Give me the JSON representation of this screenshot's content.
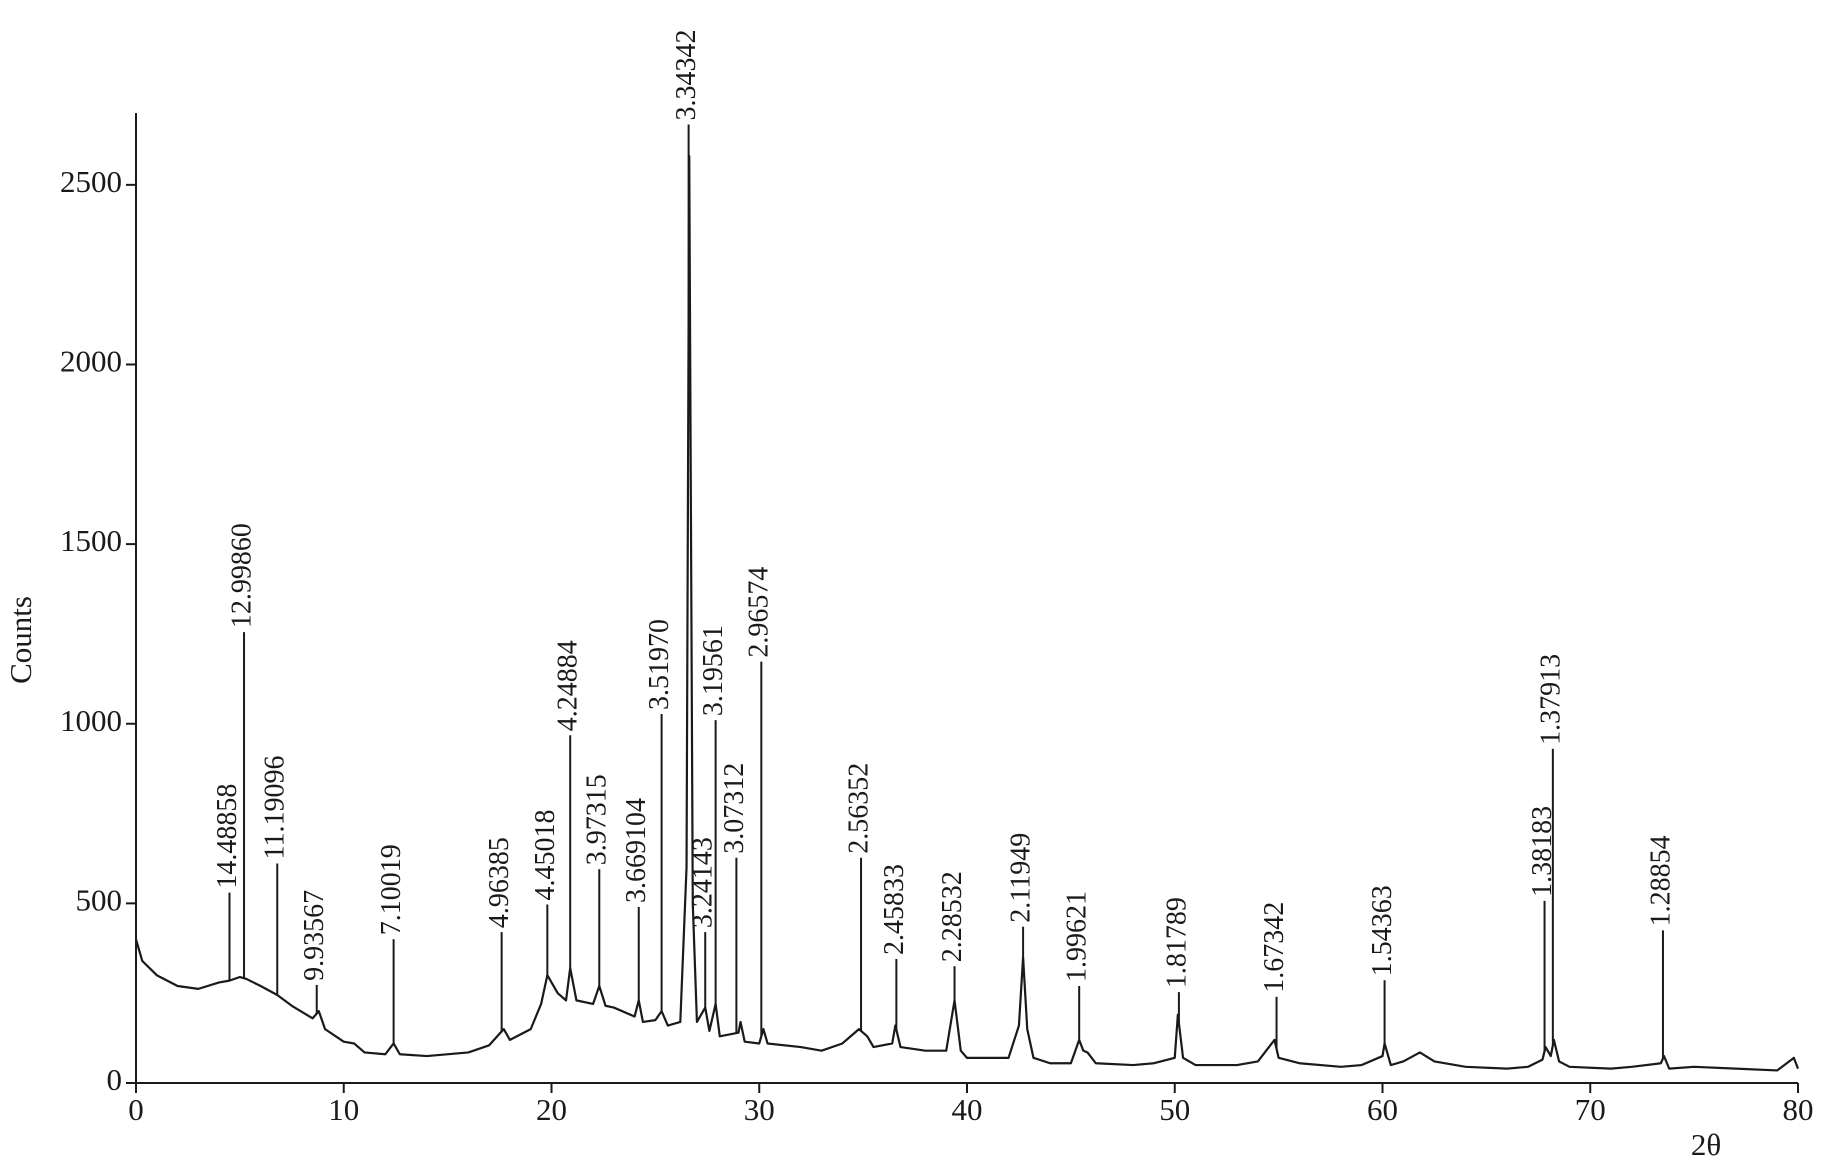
{
  "chart_data": {
    "type": "line",
    "xlabel": "2θ",
    "ylabel": "Counts",
    "color": "#1a1a1a",
    "xlim": [
      0,
      80
    ],
    "xticks": [
      0,
      10,
      20,
      30,
      40,
      50,
      60,
      70,
      80
    ],
    "ylim": [
      0,
      2700
    ],
    "yticks": [
      0,
      500,
      1000,
      1500,
      2000,
      2500
    ],
    "x": [
      0,
      0.3,
      1,
      2,
      3,
      4,
      4.5,
      5,
      5.3,
      6,
      6.8,
      7.5,
      8.5,
      8.8,
      9.1,
      10,
      10.5,
      11,
      12,
      12.4,
      12.7,
      14,
      16,
      17,
      17.7,
      18,
      19,
      19.5,
      19.8,
      20.3,
      20.7,
      20.9,
      21.2,
      22,
      22.3,
      22.6,
      23,
      24,
      24.2,
      24.4,
      25,
      25.3,
      25.6,
      26.2,
      26.5,
      26.63,
      26.8,
      27,
      27.4,
      27.6,
      27.9,
      28.1,
      29,
      29.1,
      29.3,
      30,
      30.2,
      30.4,
      32,
      33,
      34,
      34.8,
      35.2,
      35.5,
      36.4,
      36.55,
      36.8,
      38,
      39,
      39.4,
      39.7,
      40,
      41,
      42,
      42.5,
      42.7,
      42.9,
      43.2,
      44,
      45,
      45.4,
      45.6,
      45.8,
      46.2,
      48,
      49,
      50,
      50.15,
      50.4,
      51,
      53,
      54,
      54.8,
      55,
      56,
      58,
      59,
      60,
      60.1,
      60.4,
      61,
      61.8,
      62.5,
      64,
      66,
      67,
      67.7,
      67.85,
      68.1,
      68.25,
      68.5,
      69,
      71,
      72,
      73.4,
      73.55,
      73.8,
      75,
      77,
      79,
      79.8,
      80
    ],
    "values": [
      400,
      340,
      300,
      270,
      262,
      280,
      285,
      295,
      290,
      270,
      245,
      215,
      180,
      200,
      150,
      115,
      110,
      85,
      80,
      110,
      80,
      75,
      85,
      105,
      150,
      120,
      150,
      220,
      300,
      250,
      230,
      320,
      230,
      220,
      270,
      215,
      210,
      185,
      230,
      170,
      175,
      200,
      160,
      170,
      600,
      2580,
      500,
      170,
      210,
      145,
      220,
      130,
      140,
      170,
      115,
      110,
      150,
      110,
      100,
      90,
      110,
      150,
      130,
      100,
      110,
      160,
      100,
      90,
      90,
      230,
      90,
      70,
      70,
      70,
      160,
      350,
      150,
      70,
      55,
      55,
      120,
      90,
      85,
      55,
      50,
      55,
      70,
      190,
      70,
      50,
      50,
      60,
      120,
      70,
      55,
      45,
      50,
      75,
      110,
      50,
      60,
      85,
      60,
      45,
      40,
      45,
      65,
      100,
      75,
      120,
      60,
      45,
      40,
      45,
      55,
      75,
      40,
      45,
      40,
      35,
      70,
      40
    ],
    "annotations": [
      {
        "label": "14.48858",
        "x": 4.5,
        "y": 530
      },
      {
        "label": "12.99860",
        "x": 5.2,
        "y": 1255
      },
      {
        "label": "11.19096",
        "x": 6.8,
        "y": 611
      },
      {
        "label": "9.93567",
        "x": 8.7,
        "y": 273
      },
      {
        "label": "7.10019",
        "x": 12.4,
        "y": 400
      },
      {
        "label": "4.96385",
        "x": 17.6,
        "y": 420
      },
      {
        "label": "4.45018",
        "x": 19.8,
        "y": 497
      },
      {
        "label": "4.24884",
        "x": 20.9,
        "y": 968
      },
      {
        "label": "3.97315",
        "x": 22.3,
        "y": 595
      },
      {
        "label": "3.669104",
        "x": 24.2,
        "y": 490
      },
      {
        "label": "3.51970",
        "x": 25.3,
        "y": 1027
      },
      {
        "label": "3.34342",
        "x": 26.6,
        "y": 2668
      },
      {
        "label": "3.24143",
        "x": 27.4,
        "y": 420
      },
      {
        "label": "3.19561",
        "x": 27.9,
        "y": 1010
      },
      {
        "label": "3.07312",
        "x": 28.9,
        "y": 627
      },
      {
        "label": "2.96574",
        "x": 30.1,
        "y": 1173
      },
      {
        "label": "2.56352",
        "x": 34.9,
        "y": 627
      },
      {
        "label": "2.45833",
        "x": 36.6,
        "y": 345
      },
      {
        "label": "2.28532",
        "x": 39.4,
        "y": 325
      },
      {
        "label": "2.11949",
        "x": 42.7,
        "y": 435
      },
      {
        "label": "1.99621",
        "x": 45.4,
        "y": 270
      },
      {
        "label": "1.81789",
        "x": 50.2,
        "y": 253
      },
      {
        "label": "1.67342",
        "x": 54.9,
        "y": 240
      },
      {
        "label": "1.54363",
        "x": 60.1,
        "y": 286
      },
      {
        "label": "1.38183",
        "x": 67.8,
        "y": 507
      },
      {
        "label": "1.37913",
        "x": 68.2,
        "y": 930
      },
      {
        "label": "1.28854",
        "x": 73.5,
        "y": 425
      }
    ]
  }
}
